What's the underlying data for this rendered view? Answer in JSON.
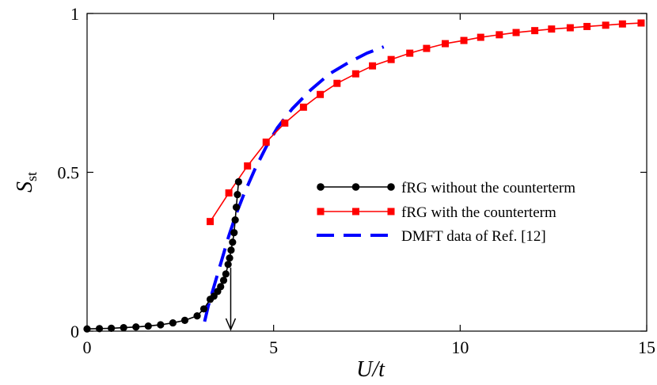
{
  "chart_data": {
    "type": "line",
    "xlabel": "U/t",
    "ylabel": "S",
    "ylabel_sub": "st",
    "xlim": [
      0,
      15
    ],
    "ylim": [
      0,
      1
    ],
    "x_ticks": [
      "0",
      "5",
      "10",
      "15"
    ],
    "x_tick_values": [
      0,
      5,
      10,
      15
    ],
    "y_ticks": [
      "0",
      "0.5",
      "1"
    ],
    "y_tick_values": [
      0,
      0.5,
      1
    ],
    "grid": false,
    "legend_position": "center-right",
    "arrow_x": 3.85,
    "series": [
      {
        "name": "fRG without the counterterm",
        "color": "#000000",
        "marker": "circle",
        "x": [
          0.0,
          0.33,
          0.65,
          0.98,
          1.31,
          1.64,
          1.97,
          2.3,
          2.62,
          2.95,
          3.13,
          3.3,
          3.4,
          3.5,
          3.58,
          3.66,
          3.72,
          3.78,
          3.82,
          3.86,
          3.9,
          3.94,
          3.97,
          4.0,
          4.03,
          4.06
        ],
        "y": [
          0.007,
          0.008,
          0.009,
          0.011,
          0.013,
          0.016,
          0.02,
          0.026,
          0.034,
          0.048,
          0.07,
          0.1,
          0.11,
          0.125,
          0.14,
          0.16,
          0.18,
          0.21,
          0.23,
          0.255,
          0.28,
          0.31,
          0.35,
          0.39,
          0.43,
          0.47
        ]
      },
      {
        "name": "fRG with the counterterm",
        "color": "#ff0000",
        "marker": "square",
        "x": [
          3.3,
          3.8,
          4.3,
          4.8,
          5.3,
          5.8,
          6.25,
          6.7,
          7.2,
          7.65,
          8.15,
          8.65,
          9.1,
          9.6,
          10.1,
          10.55,
          11.05,
          11.5,
          12.0,
          12.45,
          12.95,
          13.4,
          13.9,
          14.35,
          14.85
        ],
        "y": [
          0.345,
          0.435,
          0.52,
          0.595,
          0.655,
          0.705,
          0.745,
          0.78,
          0.81,
          0.835,
          0.855,
          0.875,
          0.89,
          0.905,
          0.915,
          0.925,
          0.933,
          0.94,
          0.946,
          0.951,
          0.955,
          0.959,
          0.963,
          0.967,
          0.97
        ]
      },
      {
        "name": "DMFT data of Ref. [12]",
        "color": "#0000ff",
        "marker": "none",
        "dashed": true,
        "x": [
          3.15,
          3.25,
          3.4,
          3.6,
          3.8,
          4.0,
          4.2,
          4.5,
          4.8,
          5.1,
          5.5,
          6.0,
          6.5,
          7.0,
          7.5,
          7.95
        ],
        "y": [
          0.03,
          0.08,
          0.14,
          0.22,
          0.3,
          0.37,
          0.43,
          0.51,
          0.58,
          0.64,
          0.7,
          0.76,
          0.81,
          0.845,
          0.875,
          0.895
        ]
      }
    ]
  }
}
